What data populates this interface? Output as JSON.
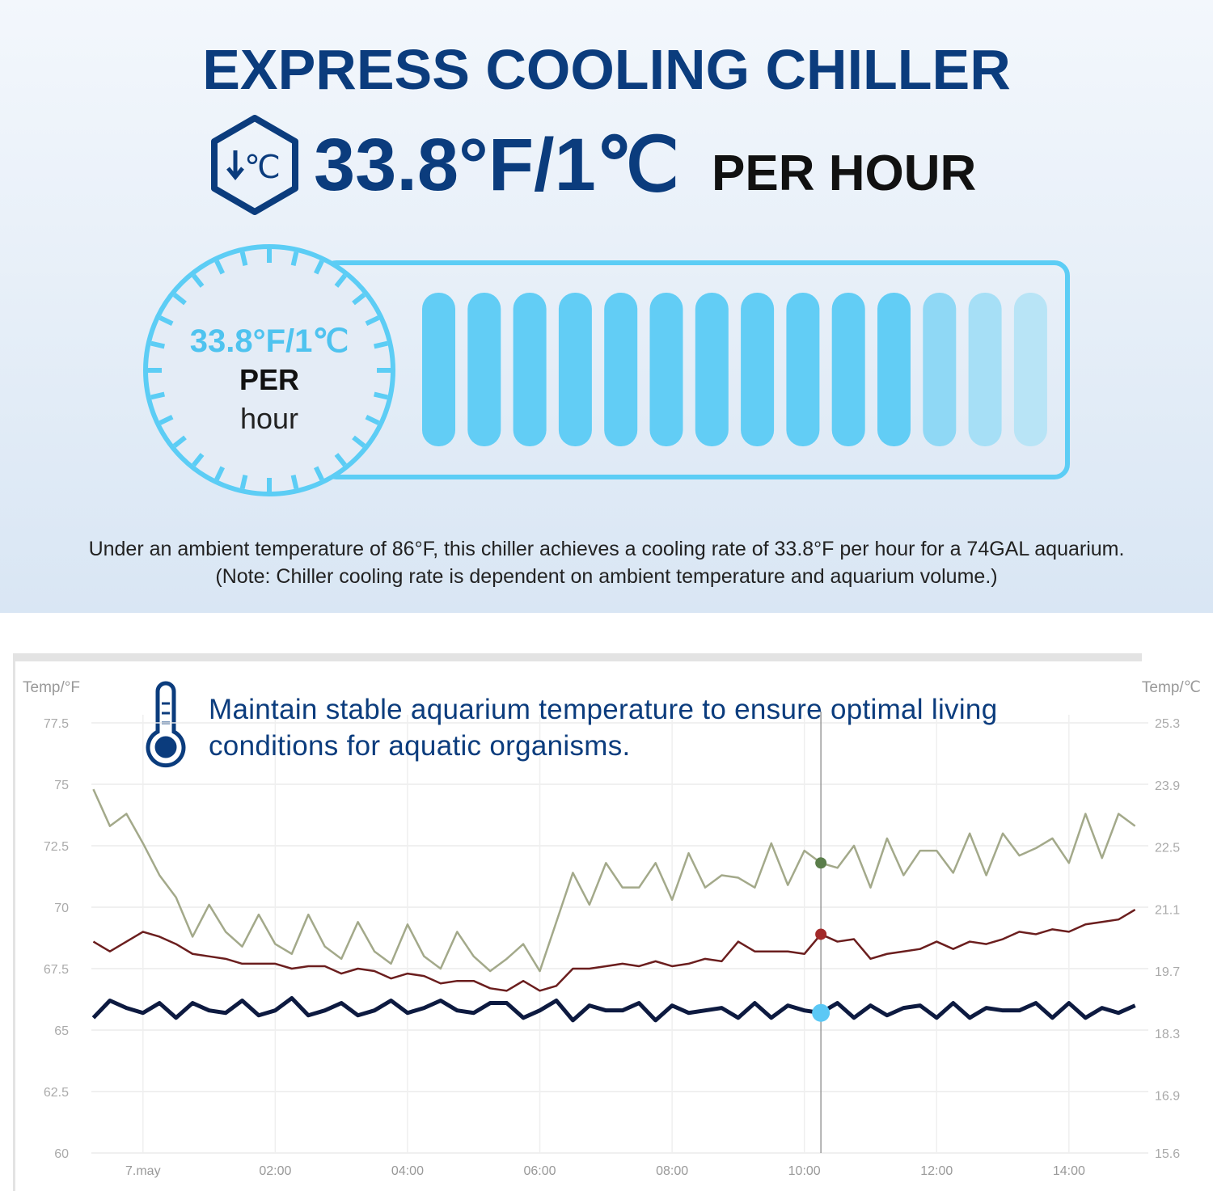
{
  "header": {
    "title": "EXPRESS COOLING CHILLER",
    "icon_label": "℃",
    "rate": "33.8°F/1℃",
    "rate_suffix": "PER HOUR"
  },
  "gauge": {
    "rate": "33.8°F/1℃",
    "per": "PER",
    "unit": "hour"
  },
  "notes": [
    "Under an ambient temperature of 86°F, this chiller achieves a cooling rate of 33.8°F per hour for a 74GAL aquarium.",
    "(Note: Chiller cooling rate is dependent on ambient temperature and aquarium volume.)"
  ],
  "chart_data": {
    "type": "line",
    "annotation": "Maintain stable aquarium temperature to ensure optimal living conditions for aquatic organisms.",
    "ylabel": "Temp/°F",
    "y2label": "Temp/℃",
    "x": [
      -0.75,
      -0.5,
      -0.25,
      0,
      0.25,
      0.5,
      0.75,
      1,
      1.25,
      1.5,
      1.75,
      2,
      2.25,
      2.5,
      2.75,
      3,
      3.25,
      3.5,
      3.75,
      4,
      4.25,
      4.5,
      4.75,
      5,
      5.25,
      5.5,
      5.75,
      6,
      6.25,
      6.5,
      6.75,
      7,
      7.25,
      7.5,
      7.75,
      8,
      8.25,
      8.5,
      8.75,
      9,
      9.25,
      9.5,
      9.75,
      10,
      10.25,
      10.5,
      10.75,
      11,
      11.25,
      11.5,
      11.75,
      12,
      12.25,
      12.5,
      12.75,
      13,
      13.25,
      13.5,
      13.75,
      14,
      14.25,
      14.5,
      14.75,
      15
    ],
    "xlim": [
      -0.78,
      15.2
    ],
    "xticks": [
      {
        "value": 0,
        "label": "7.may"
      },
      {
        "value": 2,
        "label": "02:00"
      },
      {
        "value": 4,
        "label": "04:00"
      },
      {
        "value": 6,
        "label": "06:00"
      },
      {
        "value": 8,
        "label": "08:00"
      },
      {
        "value": 10,
        "label": "10:00"
      },
      {
        "value": 12,
        "label": "12:00"
      },
      {
        "value": 14,
        "label": "14:00"
      }
    ],
    "ylim": [
      60,
      77.5
    ],
    "yticks": [
      60,
      62.5,
      65,
      67.5,
      70,
      72.5,
      75,
      77.5
    ],
    "y2lim": [
      15.6,
      25.3
    ],
    "y2ticks": [
      15.6,
      16.9,
      18.3,
      19.7,
      21.1,
      22.5,
      23.9,
      25.3
    ],
    "grid": true,
    "marker_x": 10.25,
    "series": [
      {
        "color": "#a3a98a",
        "marker_color": "#5a7d4a",
        "values": [
          74.8,
          73.3,
          73.8,
          72.6,
          71.3,
          70.4,
          68.8,
          70.1,
          69.0,
          68.4,
          69.7,
          68.5,
          68.1,
          69.7,
          68.4,
          67.9,
          69.4,
          68.2,
          67.7,
          69.3,
          68.0,
          67.5,
          69.0,
          68.0,
          67.4,
          67.9,
          68.5,
          67.4,
          69.4,
          71.4,
          70.1,
          71.8,
          70.8,
          70.8,
          71.8,
          70.3,
          72.2,
          70.8,
          71.3,
          71.2,
          70.8,
          72.6,
          70.9,
          72.3,
          71.8,
          71.6,
          72.5,
          70.8,
          72.8,
          71.3,
          72.3,
          72.3,
          71.4,
          73.0,
          71.3,
          73.0,
          72.1,
          72.4,
          72.8,
          71.8,
          73.8,
          72.0,
          73.8,
          73.3
        ]
      },
      {
        "color": "#6b1e1e",
        "marker_color": "#a32a2a",
        "values": [
          68.6,
          68.2,
          68.6,
          69.0,
          68.8,
          68.5,
          68.1,
          68.0,
          67.9,
          67.7,
          67.7,
          67.7,
          67.5,
          67.6,
          67.6,
          67.3,
          67.5,
          67.4,
          67.1,
          67.3,
          67.2,
          66.9,
          67.0,
          67.0,
          66.7,
          66.6,
          67.0,
          66.6,
          66.8,
          67.5,
          67.5,
          67.6,
          67.7,
          67.6,
          67.8,
          67.6,
          67.7,
          67.9,
          67.8,
          68.6,
          68.2,
          68.2,
          68.2,
          68.1,
          68.9,
          68.6,
          68.7,
          67.9,
          68.1,
          68.2,
          68.3,
          68.6,
          68.3,
          68.6,
          68.5,
          68.7,
          69.0,
          68.9,
          69.1,
          69.0,
          69.3,
          69.4,
          69.5,
          69.9
        ]
      },
      {
        "color": "#0d1a40",
        "marker_color": "#5bc8f5",
        "width": 5,
        "values": [
          65.5,
          66.2,
          65.9,
          65.7,
          66.1,
          65.5,
          66.1,
          65.8,
          65.7,
          66.2,
          65.6,
          65.8,
          66.3,
          65.6,
          65.8,
          66.1,
          65.6,
          65.8,
          66.2,
          65.7,
          65.9,
          66.2,
          65.8,
          65.7,
          66.1,
          66.1,
          65.5,
          65.8,
          66.2,
          65.4,
          66.0,
          65.8,
          65.8,
          66.1,
          65.4,
          66.0,
          65.7,
          65.8,
          65.9,
          65.5,
          66.1,
          65.5,
          66.0,
          65.8,
          65.7,
          66.1,
          65.5,
          66.0,
          65.6,
          65.9,
          66.0,
          65.5,
          66.1,
          65.5,
          65.9,
          65.8,
          65.8,
          66.1,
          65.5,
          66.1,
          65.5,
          65.9,
          65.7,
          66.0
        ]
      }
    ]
  }
}
